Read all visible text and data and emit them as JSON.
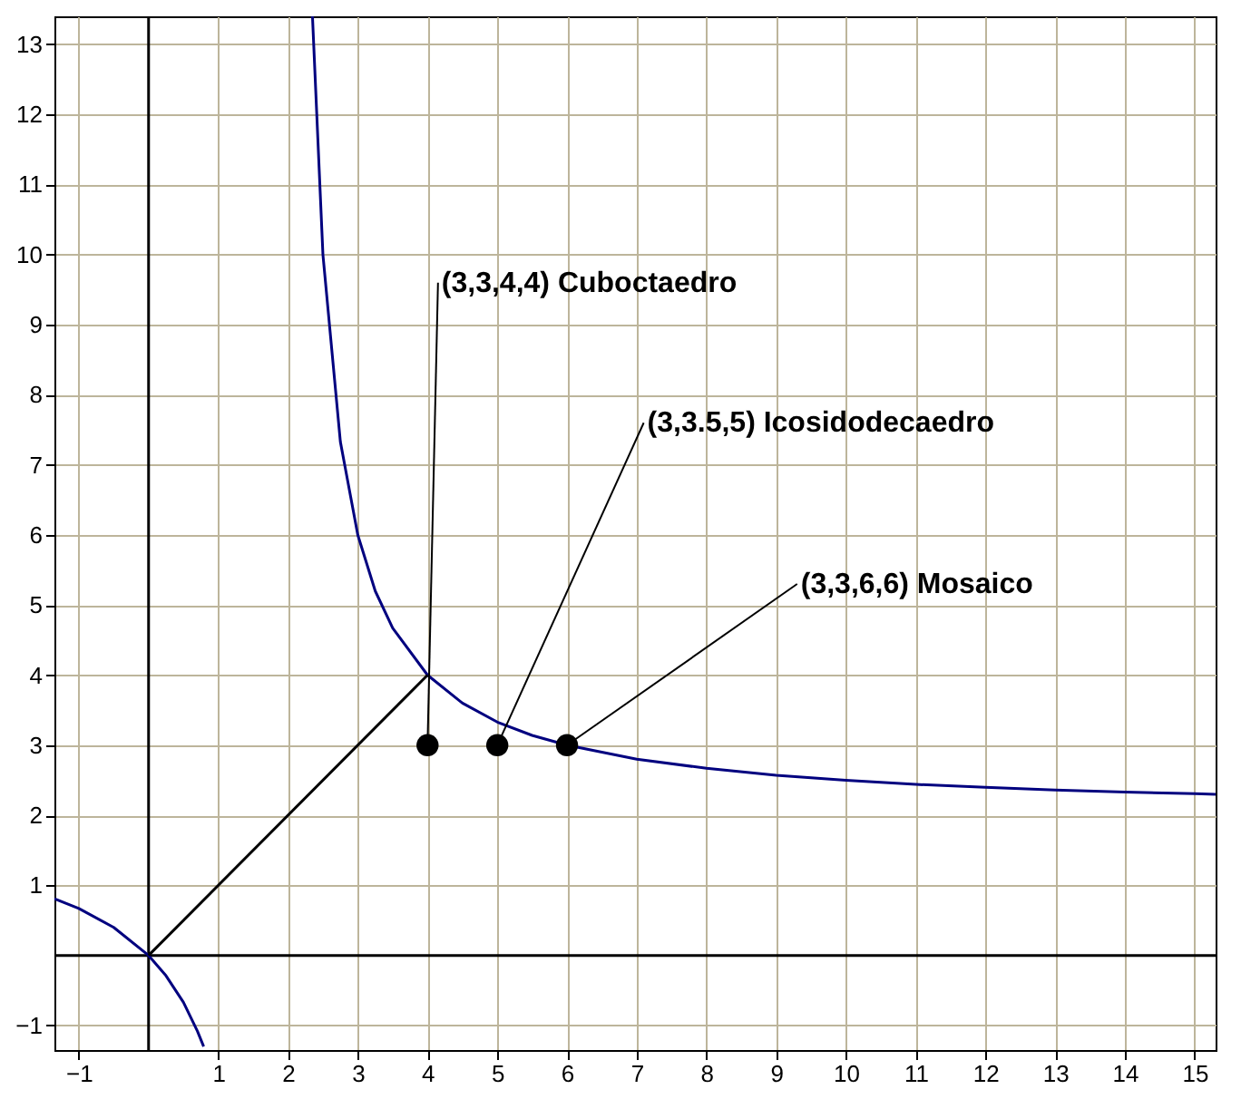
{
  "chart_data": {
    "type": "line",
    "xlim": [
      -1.35,
      15.3
    ],
    "ylim": [
      -1.35,
      13.4
    ],
    "xticks": [
      -1,
      1,
      2,
      3,
      4,
      5,
      6,
      7,
      8,
      9,
      10,
      11,
      12,
      13,
      14,
      15
    ],
    "yticks": [
      -1,
      1,
      2,
      3,
      4,
      5,
      6,
      7,
      8,
      9,
      10,
      11,
      12,
      13
    ],
    "grid": true,
    "marker": "none",
    "line_style": "solid",
    "series": [
      {
        "color": "#00007f",
        "x": [
          2.35,
          2.5,
          2.75,
          3,
          3.25,
          3.5,
          4,
          4.5,
          5,
          5.5,
          6,
          7,
          8,
          9,
          10,
          11,
          12,
          13,
          14,
          15,
          15.3
        ],
        "values": [
          13.4,
          10,
          7.33,
          6,
          5.2,
          4.67,
          4,
          3.6,
          3.33,
          3.14,
          3,
          2.8,
          2.67,
          2.57,
          2.5,
          2.44,
          2.4,
          2.36,
          2.33,
          2.31,
          2.3
        ]
      },
      {
        "color": "#00007f",
        "x": [
          -1.35,
          -1,
          -0.5,
          0,
          0.25,
          0.5,
          0.7,
          0.79
        ],
        "values": [
          0.81,
          0.67,
          0.4,
          0,
          -0.29,
          -0.67,
          -1.08,
          -1.3
        ]
      },
      {
        "color": "#000000",
        "x": [
          0,
          4
        ],
        "values": [
          0,
          4
        ]
      },
      {
        "type": "scatter",
        "color": "#000000",
        "marker": "circle",
        "x": [
          4,
          5,
          6
        ],
        "values": [
          3,
          3,
          3
        ]
      }
    ],
    "annotations": [
      {
        "text": "(3,3,4,4) Cuboctaedro",
        "x": 4,
        "y": 3
      },
      {
        "text": "(3,3.5,5) Icosidodecaedro",
        "x": 5,
        "y": 3
      },
      {
        "text": "(3,3,6,6) Mosaico",
        "x": 6,
        "y": 3
      }
    ]
  }
}
